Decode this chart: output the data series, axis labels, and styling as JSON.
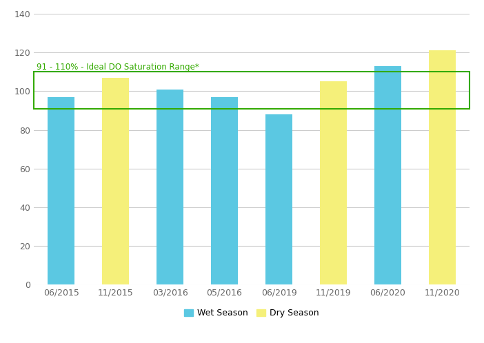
{
  "categories": [
    "06/2015",
    "11/2015",
    "03/2016",
    "05/2016",
    "06/2019",
    "11/2019",
    "06/2020",
    "11/2020"
  ],
  "values": [
    97,
    107,
    101,
    97,
    88,
    105,
    113,
    121
  ],
  "colors": [
    "#5BC8E2",
    "#F5F07A",
    "#5BC8E2",
    "#5BC8E2",
    "#5BC8E2",
    "#F5F07A",
    "#5BC8E2",
    "#F5F07A"
  ],
  "wet_color": "#5BC8E2",
  "dry_color": "#F5F07A",
  "ylim": [
    0,
    140
  ],
  "yticks": [
    0,
    20,
    40,
    60,
    80,
    100,
    120,
    140
  ],
  "ideal_do_min": 91,
  "ideal_do_max": 110,
  "ideal_do_label": "91 - 110% - Ideal DO Saturation Range*",
  "rect_color": "#33AA00",
  "background_color": "#ffffff",
  "grid_color": "#cccccc",
  "legend_wet": "Wet Season",
  "legend_dry": "Dry Season"
}
